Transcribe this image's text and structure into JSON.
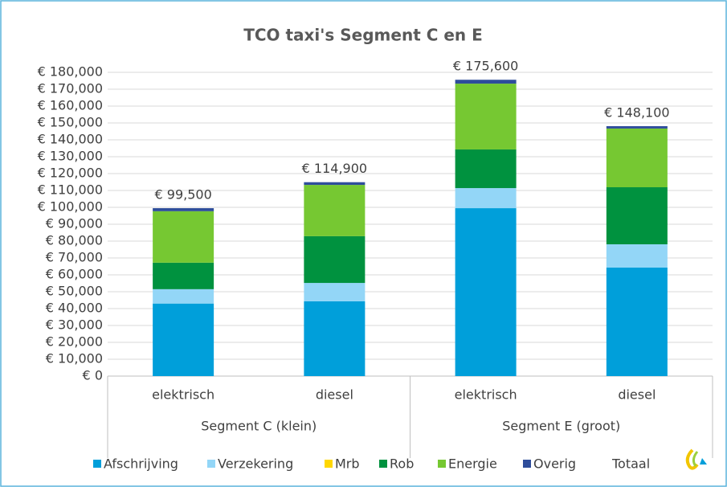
{
  "chart_data": {
    "type": "stacked-bar",
    "title": "TCO taxi's Segment C en E",
    "groups": [
      {
        "name": "Segment C (klein)",
        "categories": [
          "elektrisch",
          "diesel"
        ]
      },
      {
        "name": "Segment E (groot)",
        "categories": [
          "elektrisch",
          "diesel"
        ]
      }
    ],
    "series": [
      {
        "name": "Afschrijving",
        "color": "#009fda",
        "values": [
          43000,
          44300,
          99500,
          64300
        ]
      },
      {
        "name": "Verzekering",
        "color": "#93d6f7",
        "values": [
          8500,
          10900,
          11900,
          13800
        ]
      },
      {
        "name": "Mrb",
        "color": "#ffd700",
        "values": [
          0,
          0,
          0,
          0
        ]
      },
      {
        "name": "Rob",
        "color": "#00923f",
        "values": [
          15700,
          27700,
          22900,
          33800
        ]
      },
      {
        "name": "Energie",
        "color": "#76c832",
        "values": [
          30500,
          30400,
          39000,
          34800
        ]
      },
      {
        "name": "Overig",
        "color": "#2e4d9b",
        "values": [
          1800,
          1600,
          2300,
          1400
        ]
      }
    ],
    "totals": {
      "name": "Totaal",
      "values": [
        99500,
        114900,
        175600,
        148100
      ],
      "value_labels": [
        "€ 99,500",
        "€ 114,900",
        "€ 175,600",
        "€ 148,100"
      ]
    },
    "ylim": [
      0,
      180000
    ],
    "yticks": [
      {
        "value": 0,
        "label": "€ 0"
      },
      {
        "value": 10000,
        "label": "€ 10,000"
      },
      {
        "value": 20000,
        "label": "€ 20,000"
      },
      {
        "value": 30000,
        "label": "€ 30,000"
      },
      {
        "value": 40000,
        "label": "€ 40,000"
      },
      {
        "value": 50000,
        "label": "€ 50,000"
      },
      {
        "value": 60000,
        "label": "€ 60,000"
      },
      {
        "value": 70000,
        "label": "€ 70,000"
      },
      {
        "value": 80000,
        "label": "€ 80,000"
      },
      {
        "value": 90000,
        "label": "€ 90,000"
      },
      {
        "value": 100000,
        "label": "€ 100,000"
      },
      {
        "value": 110000,
        "label": "€ 110,000"
      },
      {
        "value": 120000,
        "label": "€ 120,000"
      },
      {
        "value": 130000,
        "label": "€ 130,000"
      },
      {
        "value": 140000,
        "label": "€ 140,000"
      },
      {
        "value": 150000,
        "label": "€ 150,000"
      },
      {
        "value": 160000,
        "label": "€ 160,000"
      },
      {
        "value": 170000,
        "label": "€ 170,000"
      },
      {
        "value": 180000,
        "label": "€ 180,000"
      }
    ],
    "grid": true
  }
}
